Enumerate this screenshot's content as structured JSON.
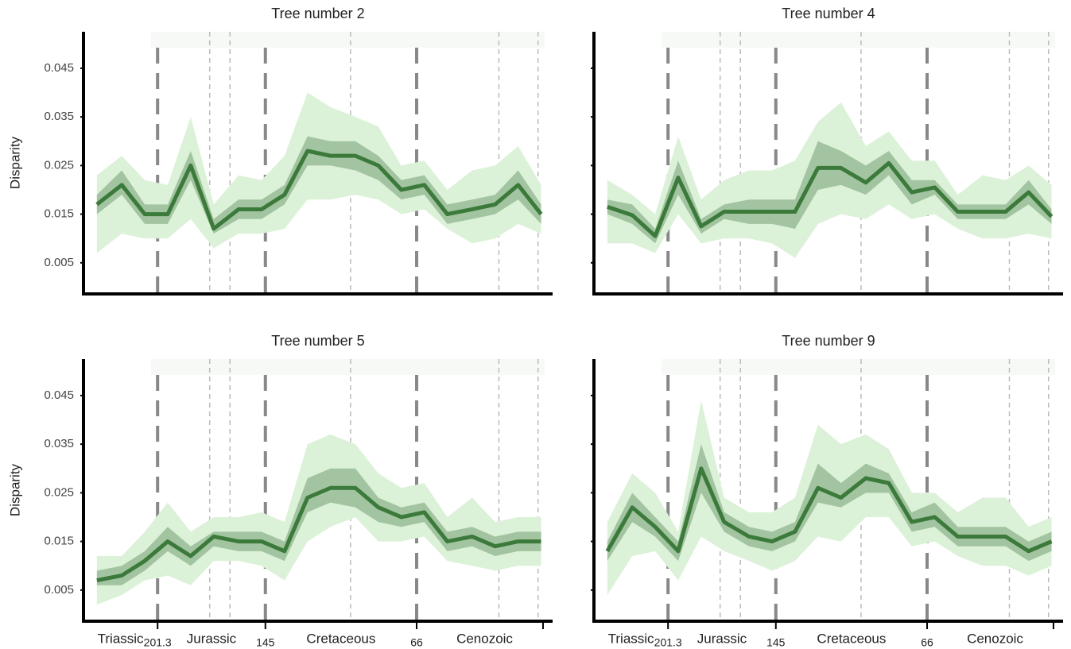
{
  "chart_data": [
    {
      "type": "line",
      "title": "Tree number 2",
      "ylabel": "Disparity",
      "x": [
        233,
        220,
        208,
        196,
        184,
        172,
        159,
        147,
        135,
        123,
        111,
        98,
        86,
        74,
        62,
        50,
        37,
        25,
        13,
        1
      ],
      "values": [
        0.017,
        0.021,
        0.015,
        0.015,
        0.025,
        0.012,
        0.016,
        0.016,
        0.019,
        0.028,
        0.027,
        0.027,
        0.025,
        0.02,
        0.021,
        0.015,
        0.016,
        0.017,
        0.021,
        0.015
      ],
      "inner_lower": [
        0.015,
        0.019,
        0.013,
        0.013,
        0.022,
        0.011,
        0.014,
        0.014,
        0.017,
        0.025,
        0.025,
        0.024,
        0.022,
        0.018,
        0.019,
        0.013,
        0.014,
        0.015,
        0.018,
        0.013
      ],
      "inner_upper": [
        0.019,
        0.024,
        0.017,
        0.017,
        0.028,
        0.014,
        0.018,
        0.018,
        0.021,
        0.031,
        0.03,
        0.03,
        0.027,
        0.022,
        0.023,
        0.017,
        0.018,
        0.019,
        0.024,
        0.017
      ],
      "outer_lower": [
        0.007,
        0.011,
        0.01,
        0.01,
        0.014,
        0.008,
        0.011,
        0.011,
        0.012,
        0.018,
        0.018,
        0.019,
        0.018,
        0.015,
        0.016,
        0.012,
        0.009,
        0.01,
        0.013,
        0.011
      ],
      "outer_upper": [
        0.023,
        0.027,
        0.022,
        0.021,
        0.035,
        0.017,
        0.023,
        0.022,
        0.027,
        0.04,
        0.037,
        0.035,
        0.033,
        0.025,
        0.026,
        0.02,
        0.024,
        0.025,
        0.029,
        0.021
      ],
      "color": "#3b7a3b",
      "inner_color": "#a3c4a0",
      "outer_color": "#dcf2d8",
      "xlim": [
        240,
        -5
      ],
      "ylim": [
        -0.0014,
        0.0525
      ],
      "yticks": [
        0.005,
        0.015,
        0.025,
        0.035,
        0.045
      ],
      "boundaries": [
        201.3,
        145,
        66
      ],
      "sub_boundaries": [
        174.1,
        163.5,
        100.5,
        23.03,
        2.58
      ]
    },
    {
      "type": "line",
      "title": "Tree number 4",
      "x": [
        233,
        220,
        208,
        196,
        184,
        172,
        159,
        147,
        135,
        123,
        111,
        98,
        86,
        74,
        62,
        50,
        37,
        25,
        13,
        1
      ],
      "values": [
        0.0165,
        0.0148,
        0.0105,
        0.0225,
        0.0125,
        0.0155,
        0.0155,
        0.0155,
        0.0155,
        0.0245,
        0.0245,
        0.0215,
        0.0255,
        0.0195,
        0.0205,
        0.0155,
        0.0155,
        0.0155,
        0.0195,
        0.0145
      ],
      "inner_lower": [
        0.015,
        0.013,
        0.009,
        0.019,
        0.011,
        0.014,
        0.013,
        0.013,
        0.012,
        0.02,
        0.021,
        0.019,
        0.023,
        0.017,
        0.019,
        0.014,
        0.014,
        0.014,
        0.017,
        0.013
      ],
      "inner_upper": [
        0.018,
        0.017,
        0.012,
        0.026,
        0.014,
        0.017,
        0.018,
        0.018,
        0.018,
        0.03,
        0.028,
        0.025,
        0.028,
        0.022,
        0.022,
        0.017,
        0.017,
        0.017,
        0.022,
        0.016
      ],
      "outer_lower": [
        0.009,
        0.009,
        0.007,
        0.015,
        0.009,
        0.01,
        0.01,
        0.009,
        0.006,
        0.013,
        0.015,
        0.014,
        0.017,
        0.014,
        0.015,
        0.012,
        0.01,
        0.01,
        0.011,
        0.01
      ],
      "outer_upper": [
        0.022,
        0.019,
        0.015,
        0.031,
        0.018,
        0.022,
        0.024,
        0.024,
        0.026,
        0.034,
        0.038,
        0.029,
        0.032,
        0.026,
        0.026,
        0.019,
        0.023,
        0.022,
        0.025,
        0.021
      ],
      "color": "#3b7a3b",
      "inner_color": "#a3c4a0",
      "outer_color": "#dcf2d8",
      "xlim": [
        240,
        -5
      ],
      "ylim": [
        -0.0014,
        0.0525
      ],
      "yticks": [
        {
          "value": 0.005,
          "label": null
        },
        {
          "value": 0.015,
          "label": null
        },
        {
          "value": 0.025,
          "label": null
        },
        {
          "value": 0.035,
          "label": null
        },
        {
          "value": 0.045,
          "label": null
        }
      ],
      "boundaries": [
        201.3,
        145,
        66
      ],
      "sub_boundaries": [
        174.1,
        163.5,
        100.5,
        23.03,
        2.58
      ]
    },
    {
      "type": "line",
      "title": "Tree number 5",
      "ylabel": "Disparity",
      "x": [
        233,
        220,
        208,
        196,
        184,
        172,
        159,
        147,
        135,
        123,
        111,
        98,
        86,
        74,
        62,
        50,
        37,
        25,
        13,
        1
      ],
      "values": [
        0.007,
        0.008,
        0.011,
        0.015,
        0.012,
        0.016,
        0.015,
        0.015,
        0.013,
        0.024,
        0.026,
        0.026,
        0.022,
        0.02,
        0.021,
        0.015,
        0.016,
        0.014,
        0.015,
        0.015
      ],
      "inner_lower": [
        0.006,
        0.006,
        0.009,
        0.013,
        0.01,
        0.014,
        0.013,
        0.013,
        0.011,
        0.021,
        0.023,
        0.022,
        0.019,
        0.018,
        0.019,
        0.013,
        0.014,
        0.012,
        0.013,
        0.013
      ],
      "inner_upper": [
        0.009,
        0.01,
        0.013,
        0.018,
        0.014,
        0.017,
        0.017,
        0.017,
        0.015,
        0.028,
        0.03,
        0.03,
        0.024,
        0.022,
        0.023,
        0.017,
        0.018,
        0.016,
        0.017,
        0.017
      ],
      "outer_lower": [
        0.002,
        0.004,
        0.007,
        0.008,
        0.006,
        0.011,
        0.011,
        0.01,
        0.007,
        0.015,
        0.018,
        0.02,
        0.015,
        0.015,
        0.016,
        0.011,
        0.01,
        0.009,
        0.01,
        0.01
      ],
      "outer_upper": [
        0.012,
        0.012,
        0.017,
        0.023,
        0.017,
        0.02,
        0.02,
        0.021,
        0.019,
        0.035,
        0.037,
        0.035,
        0.029,
        0.026,
        0.027,
        0.02,
        0.024,
        0.019,
        0.02,
        0.02
      ],
      "color": "#3b7a3b",
      "inner_color": "#a3c4a0",
      "outer_color": "#dcf2d8",
      "xlim": [
        240,
        -5
      ],
      "ylim": [
        -0.0014,
        0.0525
      ],
      "yticks": [
        0.005,
        0.015,
        0.025,
        0.035,
        0.045
      ],
      "xticks": [
        201.3,
        145,
        66,
        {
          "value": 0,
          "label": null
        }
      ],
      "period_labels": [
        "Triassic",
        "Jurassic",
        "Cretaceous",
        "Cenozoic"
      ],
      "boundaries": [
        201.3,
        145,
        66
      ],
      "sub_boundaries": [
        174.1,
        163.5,
        100.5,
        23.03,
        2.58
      ]
    },
    {
      "type": "line",
      "title": "Tree number 9",
      "x": [
        233,
        220,
        208,
        196,
        184,
        172,
        159,
        147,
        135,
        123,
        111,
        98,
        86,
        74,
        62,
        50,
        37,
        25,
        13,
        1
      ],
      "values": [
        0.013,
        0.022,
        0.018,
        0.013,
        0.03,
        0.019,
        0.016,
        0.015,
        0.017,
        0.026,
        0.024,
        0.028,
        0.027,
        0.019,
        0.02,
        0.016,
        0.016,
        0.016,
        0.013,
        0.015
      ],
      "inner_lower": [
        0.011,
        0.019,
        0.016,
        0.011,
        0.025,
        0.017,
        0.014,
        0.013,
        0.015,
        0.023,
        0.022,
        0.025,
        0.025,
        0.017,
        0.018,
        0.014,
        0.014,
        0.014,
        0.011,
        0.013
      ],
      "inner_upper": [
        0.015,
        0.025,
        0.02,
        0.015,
        0.035,
        0.021,
        0.018,
        0.017,
        0.019,
        0.031,
        0.027,
        0.031,
        0.029,
        0.021,
        0.023,
        0.018,
        0.018,
        0.018,
        0.015,
        0.017
      ],
      "outer_lower": [
        0.004,
        0.012,
        0.013,
        0.007,
        0.016,
        0.013,
        0.011,
        0.009,
        0.011,
        0.016,
        0.015,
        0.02,
        0.02,
        0.014,
        0.015,
        0.012,
        0.01,
        0.01,
        0.008,
        0.01
      ],
      "outer_upper": [
        0.019,
        0.029,
        0.025,
        0.017,
        0.044,
        0.024,
        0.021,
        0.021,
        0.024,
        0.039,
        0.035,
        0.037,
        0.034,
        0.025,
        0.025,
        0.021,
        0.024,
        0.024,
        0.018,
        0.02
      ],
      "color": "#3b7a3b",
      "inner_color": "#a3c4a0",
      "outer_color": "#dcf2d8",
      "xlim": [
        240,
        -5
      ],
      "ylim": [
        -0.0014,
        0.0525
      ],
      "yticks": [
        {
          "value": 0.005,
          "label": null
        },
        {
          "value": 0.015,
          "label": null
        },
        {
          "value": 0.025,
          "label": null
        },
        {
          "value": 0.035,
          "label": null
        },
        {
          "value": 0.045,
          "label": null
        }
      ],
      "xticks": [
        201.3,
        145,
        66,
        {
          "value": 0,
          "label": null
        }
      ],
      "period_labels": [
        "Triassic",
        "Jurassic",
        "Cretaceous",
        "Cenozoic"
      ],
      "boundaries": [
        201.3,
        145,
        66
      ],
      "sub_boundaries": [
        174.1,
        163.5,
        100.5,
        23.03,
        2.58
      ]
    }
  ]
}
